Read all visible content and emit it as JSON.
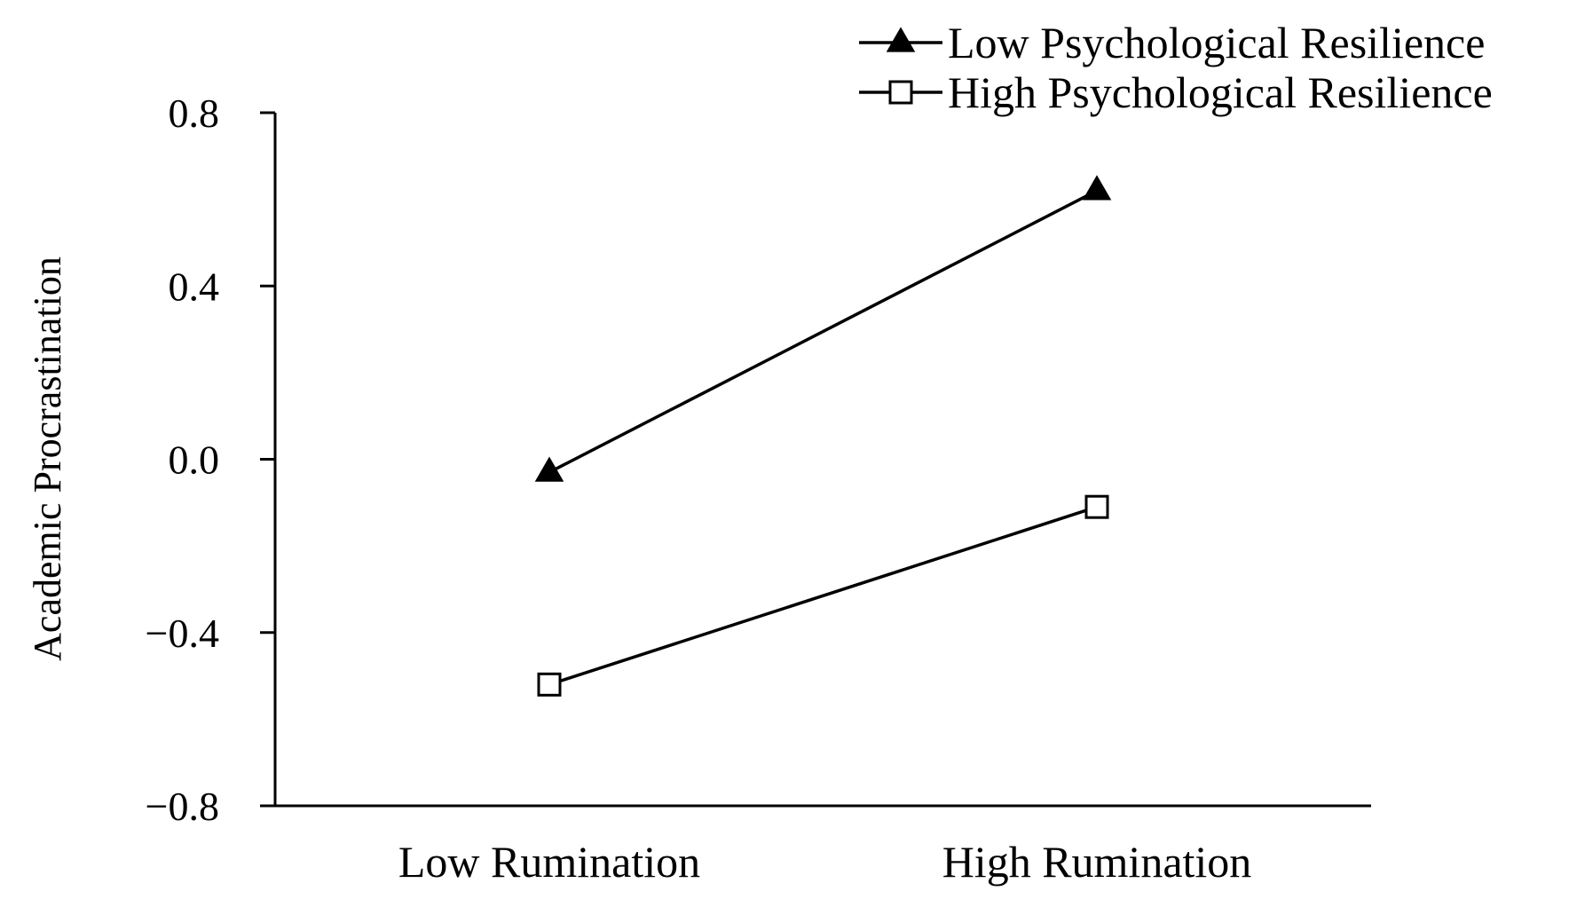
{
  "chart_data": {
    "type": "line",
    "title": "",
    "xlabel": "",
    "ylabel": "Academic Procrastination",
    "categories": [
      "Low Rumination",
      "High Rumination"
    ],
    "ylim": [
      -0.8,
      0.8
    ],
    "yticks": [
      -0.8,
      -0.4,
      0.0,
      0.4,
      0.8
    ],
    "ytick_labels": [
      "−0.8",
      "−0.4",
      "0.0",
      "0.4",
      "0.8"
    ],
    "grid": false,
    "legend_position": "top-right",
    "series": [
      {
        "name": "Low Psychological Resilience",
        "marker": "filled-triangle",
        "values": [
          -0.03,
          0.62
        ]
      },
      {
        "name": "High Psychological Resilience",
        "marker": "open-square",
        "values": [
          -0.52,
          -0.11
        ]
      }
    ],
    "colors": {
      "line": "#000000",
      "background": "#ffffff"
    }
  }
}
